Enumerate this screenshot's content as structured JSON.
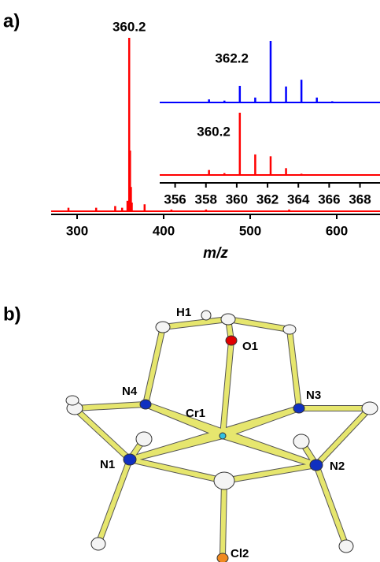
{
  "panel_labels": [
    "a)",
    "b)"
  ],
  "chart_data": [
    {
      "type": "spectrum",
      "xlim": [
        270,
        650
      ],
      "xticks": [
        300,
        400,
        500,
        600
      ],
      "x_label": "m/z",
      "ylim": [
        0,
        100
      ],
      "series": [
        {
          "color": "#ff0000",
          "x": [
            290,
            322,
            344,
            352,
            358.2,
            359.2,
            360.2,
            361.2,
            362.2,
            363.2,
            378,
            409,
            449,
            545
          ],
          "values": [
            2,
            2,
            3,
            2,
            6,
            5,
            100,
            35,
            14,
            5,
            4,
            1,
            1,
            1
          ],
          "label": 360.2
        }
      ]
    },
    {
      "type": "spectrum",
      "xlim": [
        355,
        369.3
      ],
      "xticks": [
        356,
        358,
        360,
        362,
        364,
        366,
        368
      ],
      "ylim": [
        0,
        100
      ],
      "series": [
        {
          "color": "#0000ff",
          "x": [
            358.2,
            359.2,
            360.2,
            361.2,
            362.2,
            363.2,
            364.2,
            365.2,
            366.2
          ],
          "values": [
            5,
            3,
            27,
            8,
            100,
            26,
            37,
            8,
            2
          ],
          "label": 362.2
        },
        {
          "color": "#ff0000",
          "x": [
            358.2,
            359.2,
            360.2,
            361.2,
            362.2,
            363.2,
            364.2
          ],
          "values": [
            8,
            3,
            100,
            33,
            30,
            11,
            2
          ],
          "label": 360.2
        }
      ]
    }
  ],
  "structure": {
    "atom_labels": [
      "H1",
      "O1",
      "N4",
      "N3",
      "Cr1",
      "N1",
      "N2",
      "Cl2"
    ]
  }
}
